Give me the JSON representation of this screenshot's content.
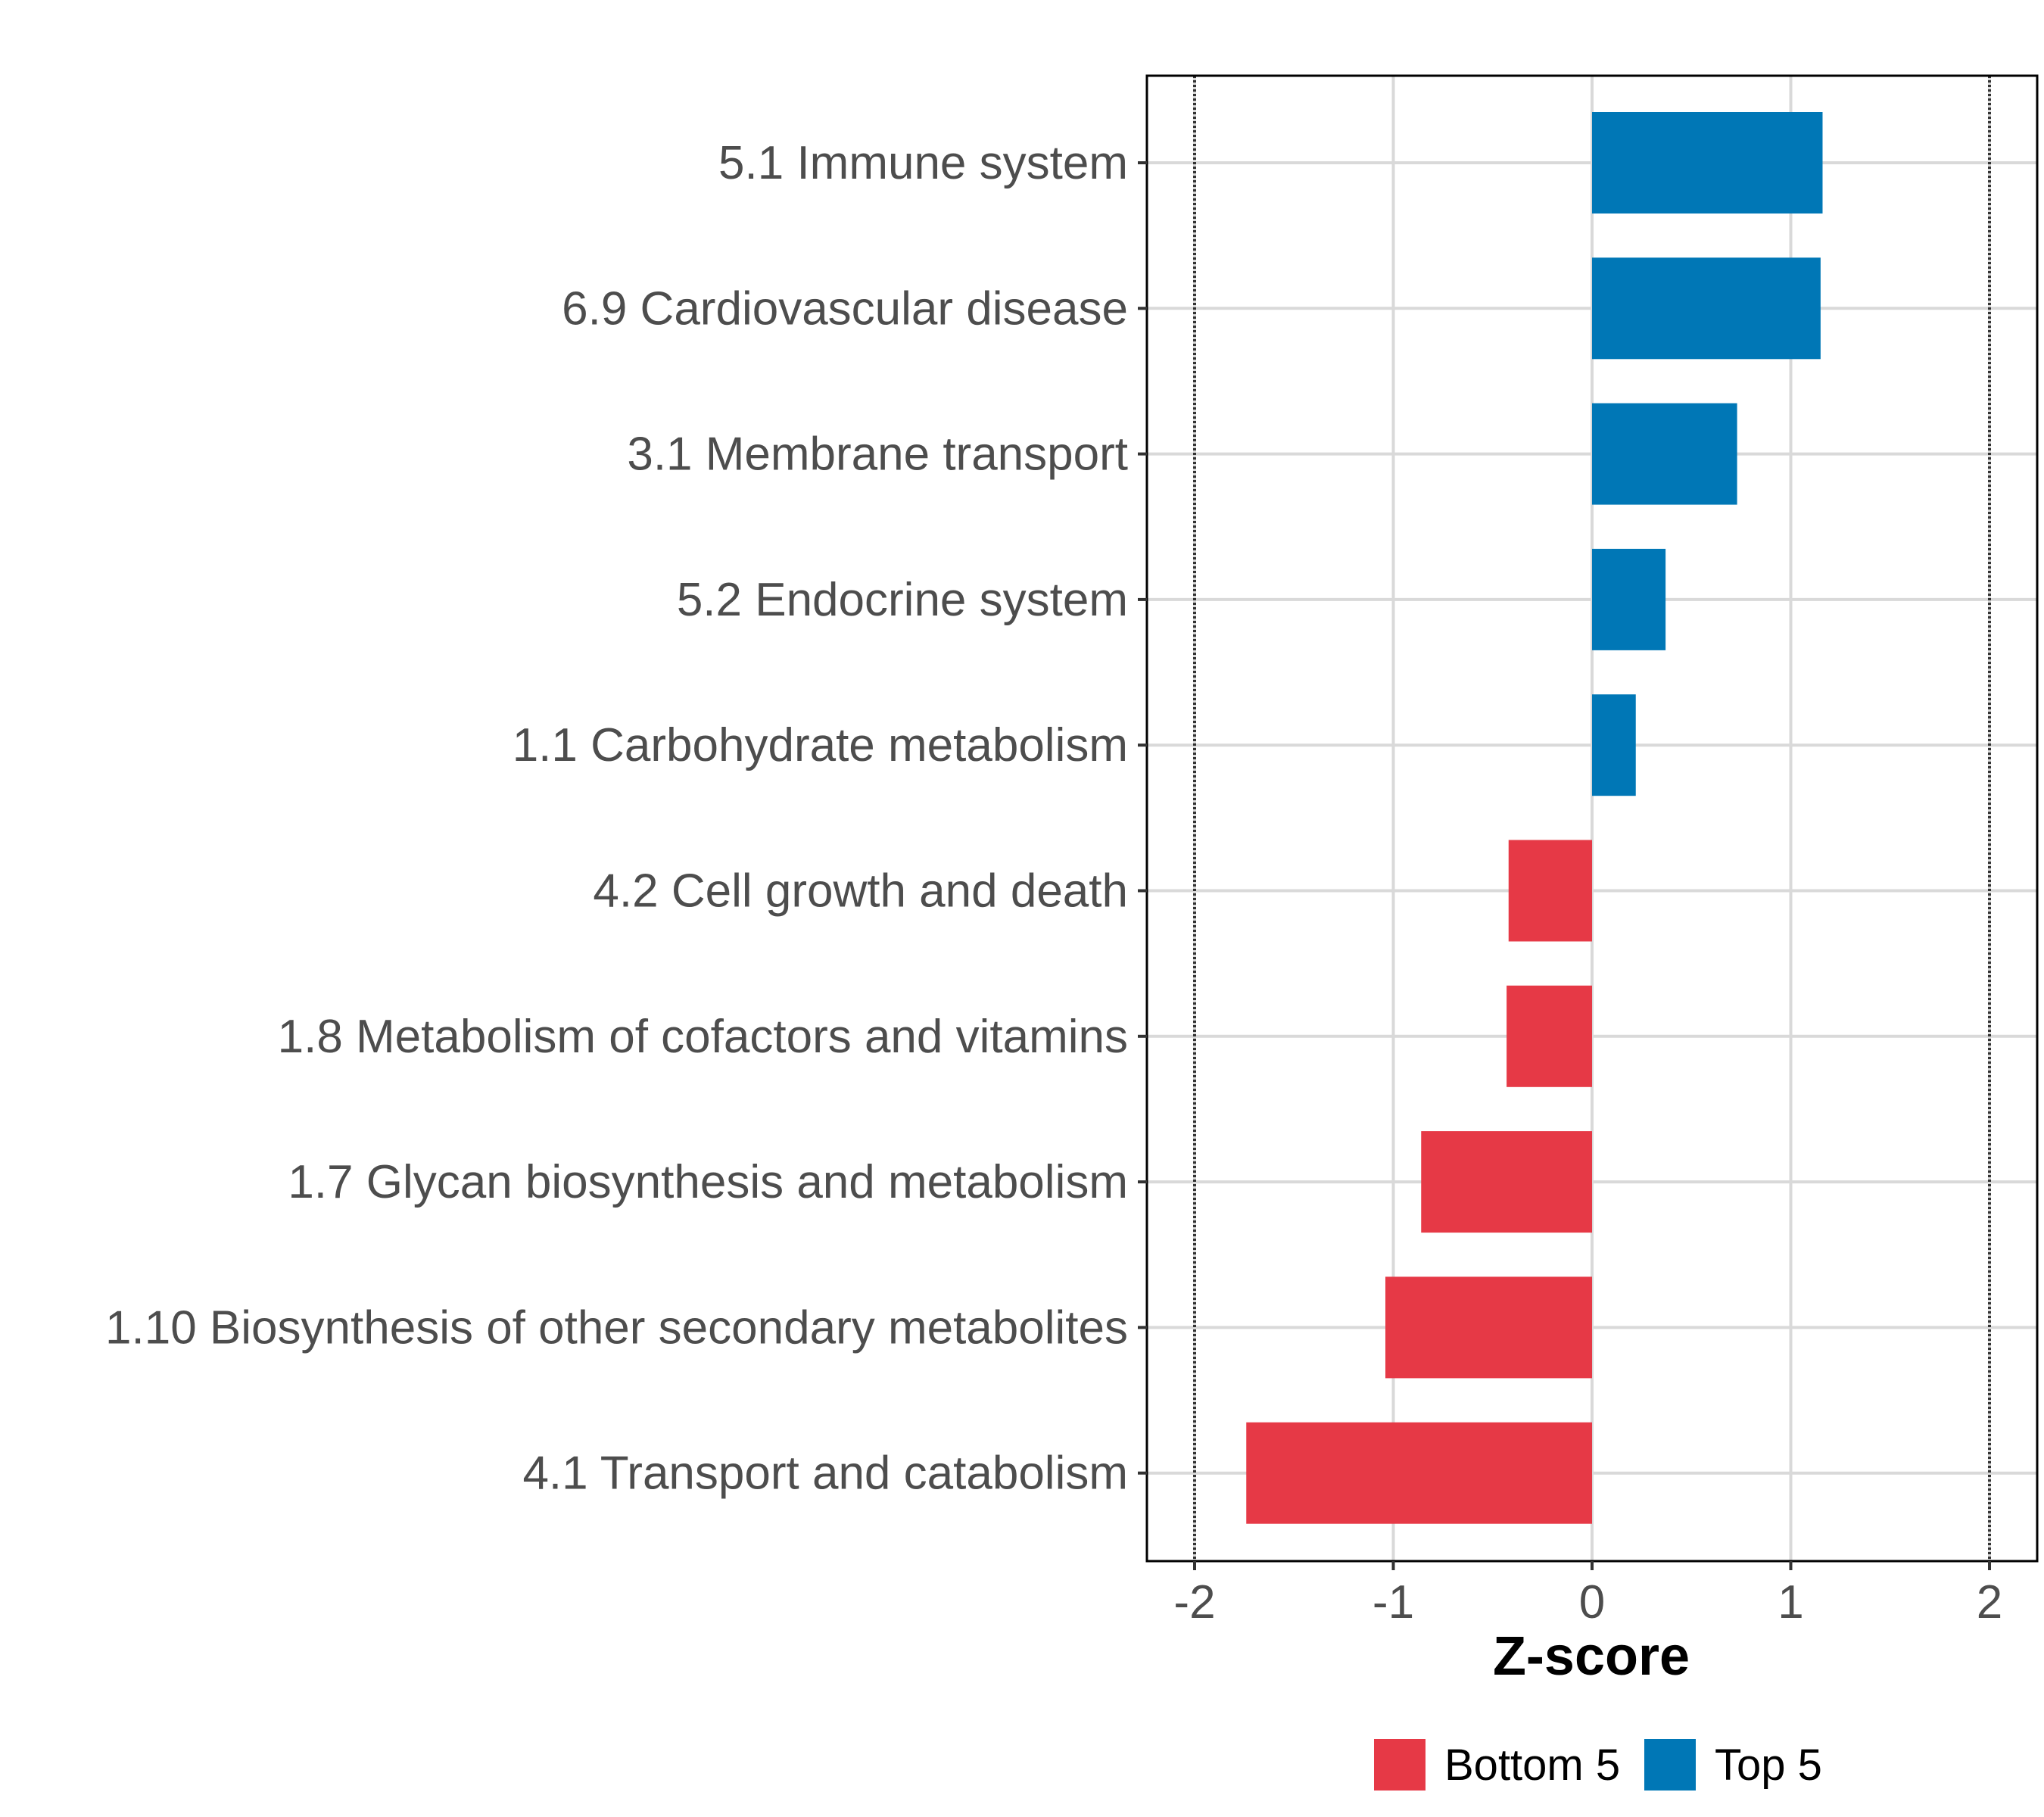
{
  "chart_data": {
    "type": "bar",
    "orientation": "horizontal",
    "title": "",
    "xlabel": "Z-score",
    "ylabel": "",
    "xlim": [
      -2.24,
      2.24
    ],
    "xticks": [
      -2,
      -1,
      0,
      1,
      2
    ],
    "xtick_labels": [
      "-2",
      "-1",
      "0",
      "1",
      "2"
    ],
    "grid": true,
    "reference_lines": [
      -2,
      2
    ],
    "legend_position": "bottom",
    "categories": [
      "5.1 Immune system",
      "6.9 Cardiovascular disease",
      "3.1 Membrane transport",
      "5.2 Endocrine system",
      "1.1 Carbohydrate metabolism",
      "4.2 Cell growth and death",
      "1.8 Metabolism of cofactors and vitamins",
      "1.7 Glycan biosynthesis and metabolism",
      "1.10 Biosynthesis of other secondary metabolites",
      "4.1 Transport and catabolism"
    ],
    "values": [
      1.16,
      1.15,
      0.73,
      0.37,
      0.22,
      -0.42,
      -0.43,
      -0.86,
      -1.04,
      -1.74
    ],
    "groups": [
      "Top 5",
      "Top 5",
      "Top 5",
      "Top 5",
      "Top 5",
      "Bottom 5",
      "Bottom 5",
      "Bottom 5",
      "Bottom 5",
      "Bottom 5"
    ],
    "legend": [
      {
        "name": "Bottom 5",
        "color": "#e63946"
      },
      {
        "name": "Top 5",
        "color": "#0077b6"
      }
    ]
  }
}
